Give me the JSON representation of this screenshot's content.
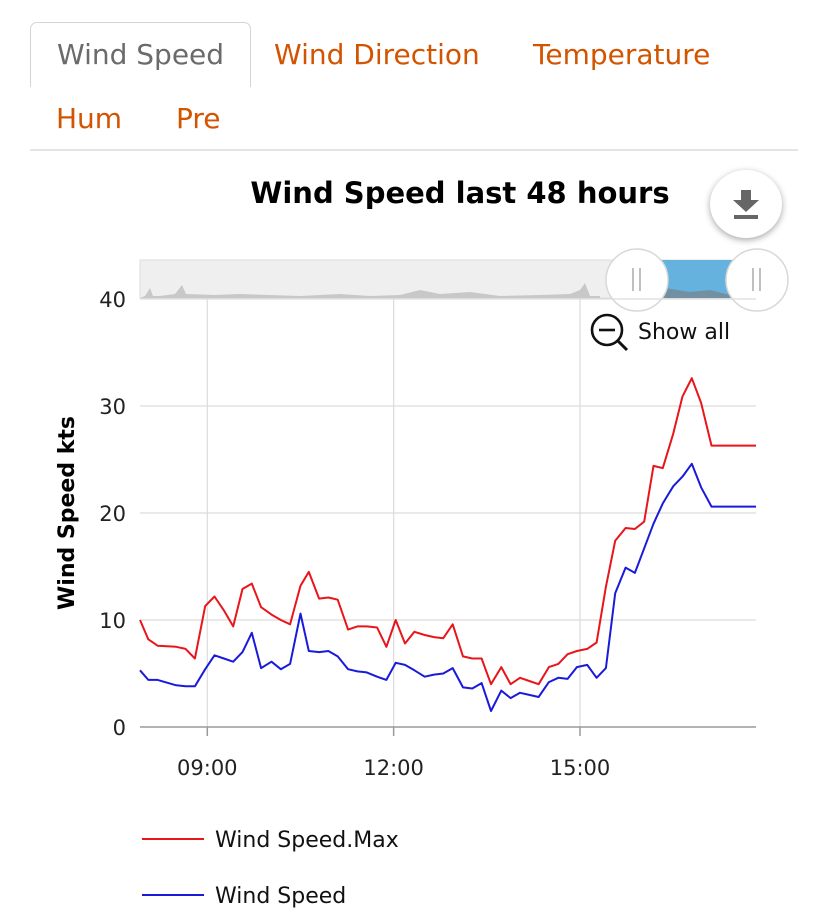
{
  "tabs": [
    {
      "label": "Wind Speed",
      "active": true
    },
    {
      "label": "Wind Direction",
      "active": false
    },
    {
      "label": "Temperature",
      "active": false
    },
    {
      "label": "Hum",
      "active": false
    },
    {
      "label": "Pre",
      "active": false
    }
  ],
  "navigator": {
    "show_all_label": "Show all"
  },
  "colors": {
    "accent": "#d35400",
    "max_series": "#e8151b",
    "speed_series": "#1a1adb",
    "navigator_selection": "#66b2de"
  },
  "icons": {
    "export": "download-icon",
    "zoom": "zoom-out-icon"
  },
  "chart_data": {
    "type": "line",
    "title": "Wind Speed last 48 hours",
    "xlabel": "",
    "ylabel": "Wind Speed kts",
    "xlim": [
      "07:55",
      "17:50"
    ],
    "ylim": [
      0,
      40
    ],
    "x_ticks": [
      "09:00",
      "12:00",
      "15:00"
    ],
    "y_ticks": [
      0,
      10,
      20,
      30,
      40
    ],
    "grid": true,
    "legend_position": "bottom-left",
    "x": [
      "07:55",
      "08:03",
      "08:12",
      "08:30",
      "08:39",
      "08:48",
      "08:58",
      "09:07",
      "09:16",
      "09:25",
      "09:34",
      "09:43",
      "09:52",
      "10:02",
      "10:11",
      "10:20",
      "10:30",
      "10:38",
      "10:48",
      "10:57",
      "11:06",
      "11:16",
      "11:25",
      "11:34",
      "11:44",
      "11:53",
      "12:02",
      "12:11",
      "12:20",
      "12:30",
      "12:39",
      "12:48",
      "12:57",
      "13:07",
      "13:16",
      "13:25",
      "13:34",
      "13:44",
      "13:53",
      "14:02",
      "14:11",
      "14:20",
      "14:30",
      "14:39",
      "14:48",
      "14:57",
      "15:07",
      "15:16",
      "15:25",
      "15:34",
      "15:44",
      "15:53",
      "16:02",
      "16:11",
      "16:20",
      "16:30",
      "16:39",
      "16:48",
      "16:57",
      "17:07",
      "17:16",
      "17:25",
      "17:34",
      "17:43",
      "17:50"
    ],
    "series": [
      {
        "name": "Wind Speed.Max",
        "color": "#e8151b",
        "values": [
          10.0,
          8.2,
          7.6,
          7.5,
          7.3,
          6.4,
          11.3,
          12.2,
          10.9,
          9.4,
          12.9,
          13.4,
          11.2,
          10.5,
          10.0,
          9.6,
          13.2,
          14.5,
          12.0,
          12.1,
          11.9,
          9.1,
          9.4,
          9.4,
          9.3,
          7.5,
          10.0,
          7.8,
          8.9,
          8.6,
          8.4,
          8.3,
          9.6,
          6.6,
          6.4,
          6.4,
          4.0,
          5.6,
          4.0,
          4.6,
          4.3,
          4.0,
          5.6,
          5.9,
          6.8,
          7.1,
          7.3,
          7.9,
          13.1,
          17.4,
          18.6,
          18.5,
          19.2,
          24.4,
          24.2,
          27.4,
          30.9,
          32.6,
          30.3,
          26.3,
          26.3,
          26.3,
          26.3,
          26.3,
          26.3
        ]
      },
      {
        "name": "Wind Speed",
        "color": "#1a1adb",
        "values": [
          5.3,
          4.4,
          4.4,
          3.9,
          3.8,
          3.8,
          5.4,
          6.7,
          6.4,
          6.1,
          7.0,
          8.8,
          5.5,
          6.1,
          5.4,
          5.9,
          10.6,
          7.1,
          7.0,
          7.1,
          6.6,
          5.4,
          5.2,
          5.1,
          4.7,
          4.4,
          6.0,
          5.8,
          5.3,
          4.7,
          4.9,
          5.0,
          5.5,
          3.7,
          3.6,
          4.1,
          1.5,
          3.4,
          2.7,
          3.2,
          3.0,
          2.8,
          4.2,
          4.6,
          4.5,
          5.6,
          5.8,
          4.6,
          5.5,
          12.5,
          14.9,
          14.4,
          16.7,
          19.0,
          20.9,
          22.5,
          23.4,
          24.6,
          22.4,
          20.6,
          20.6,
          20.6,
          20.6,
          20.6,
          20.6
        ]
      }
    ]
  }
}
